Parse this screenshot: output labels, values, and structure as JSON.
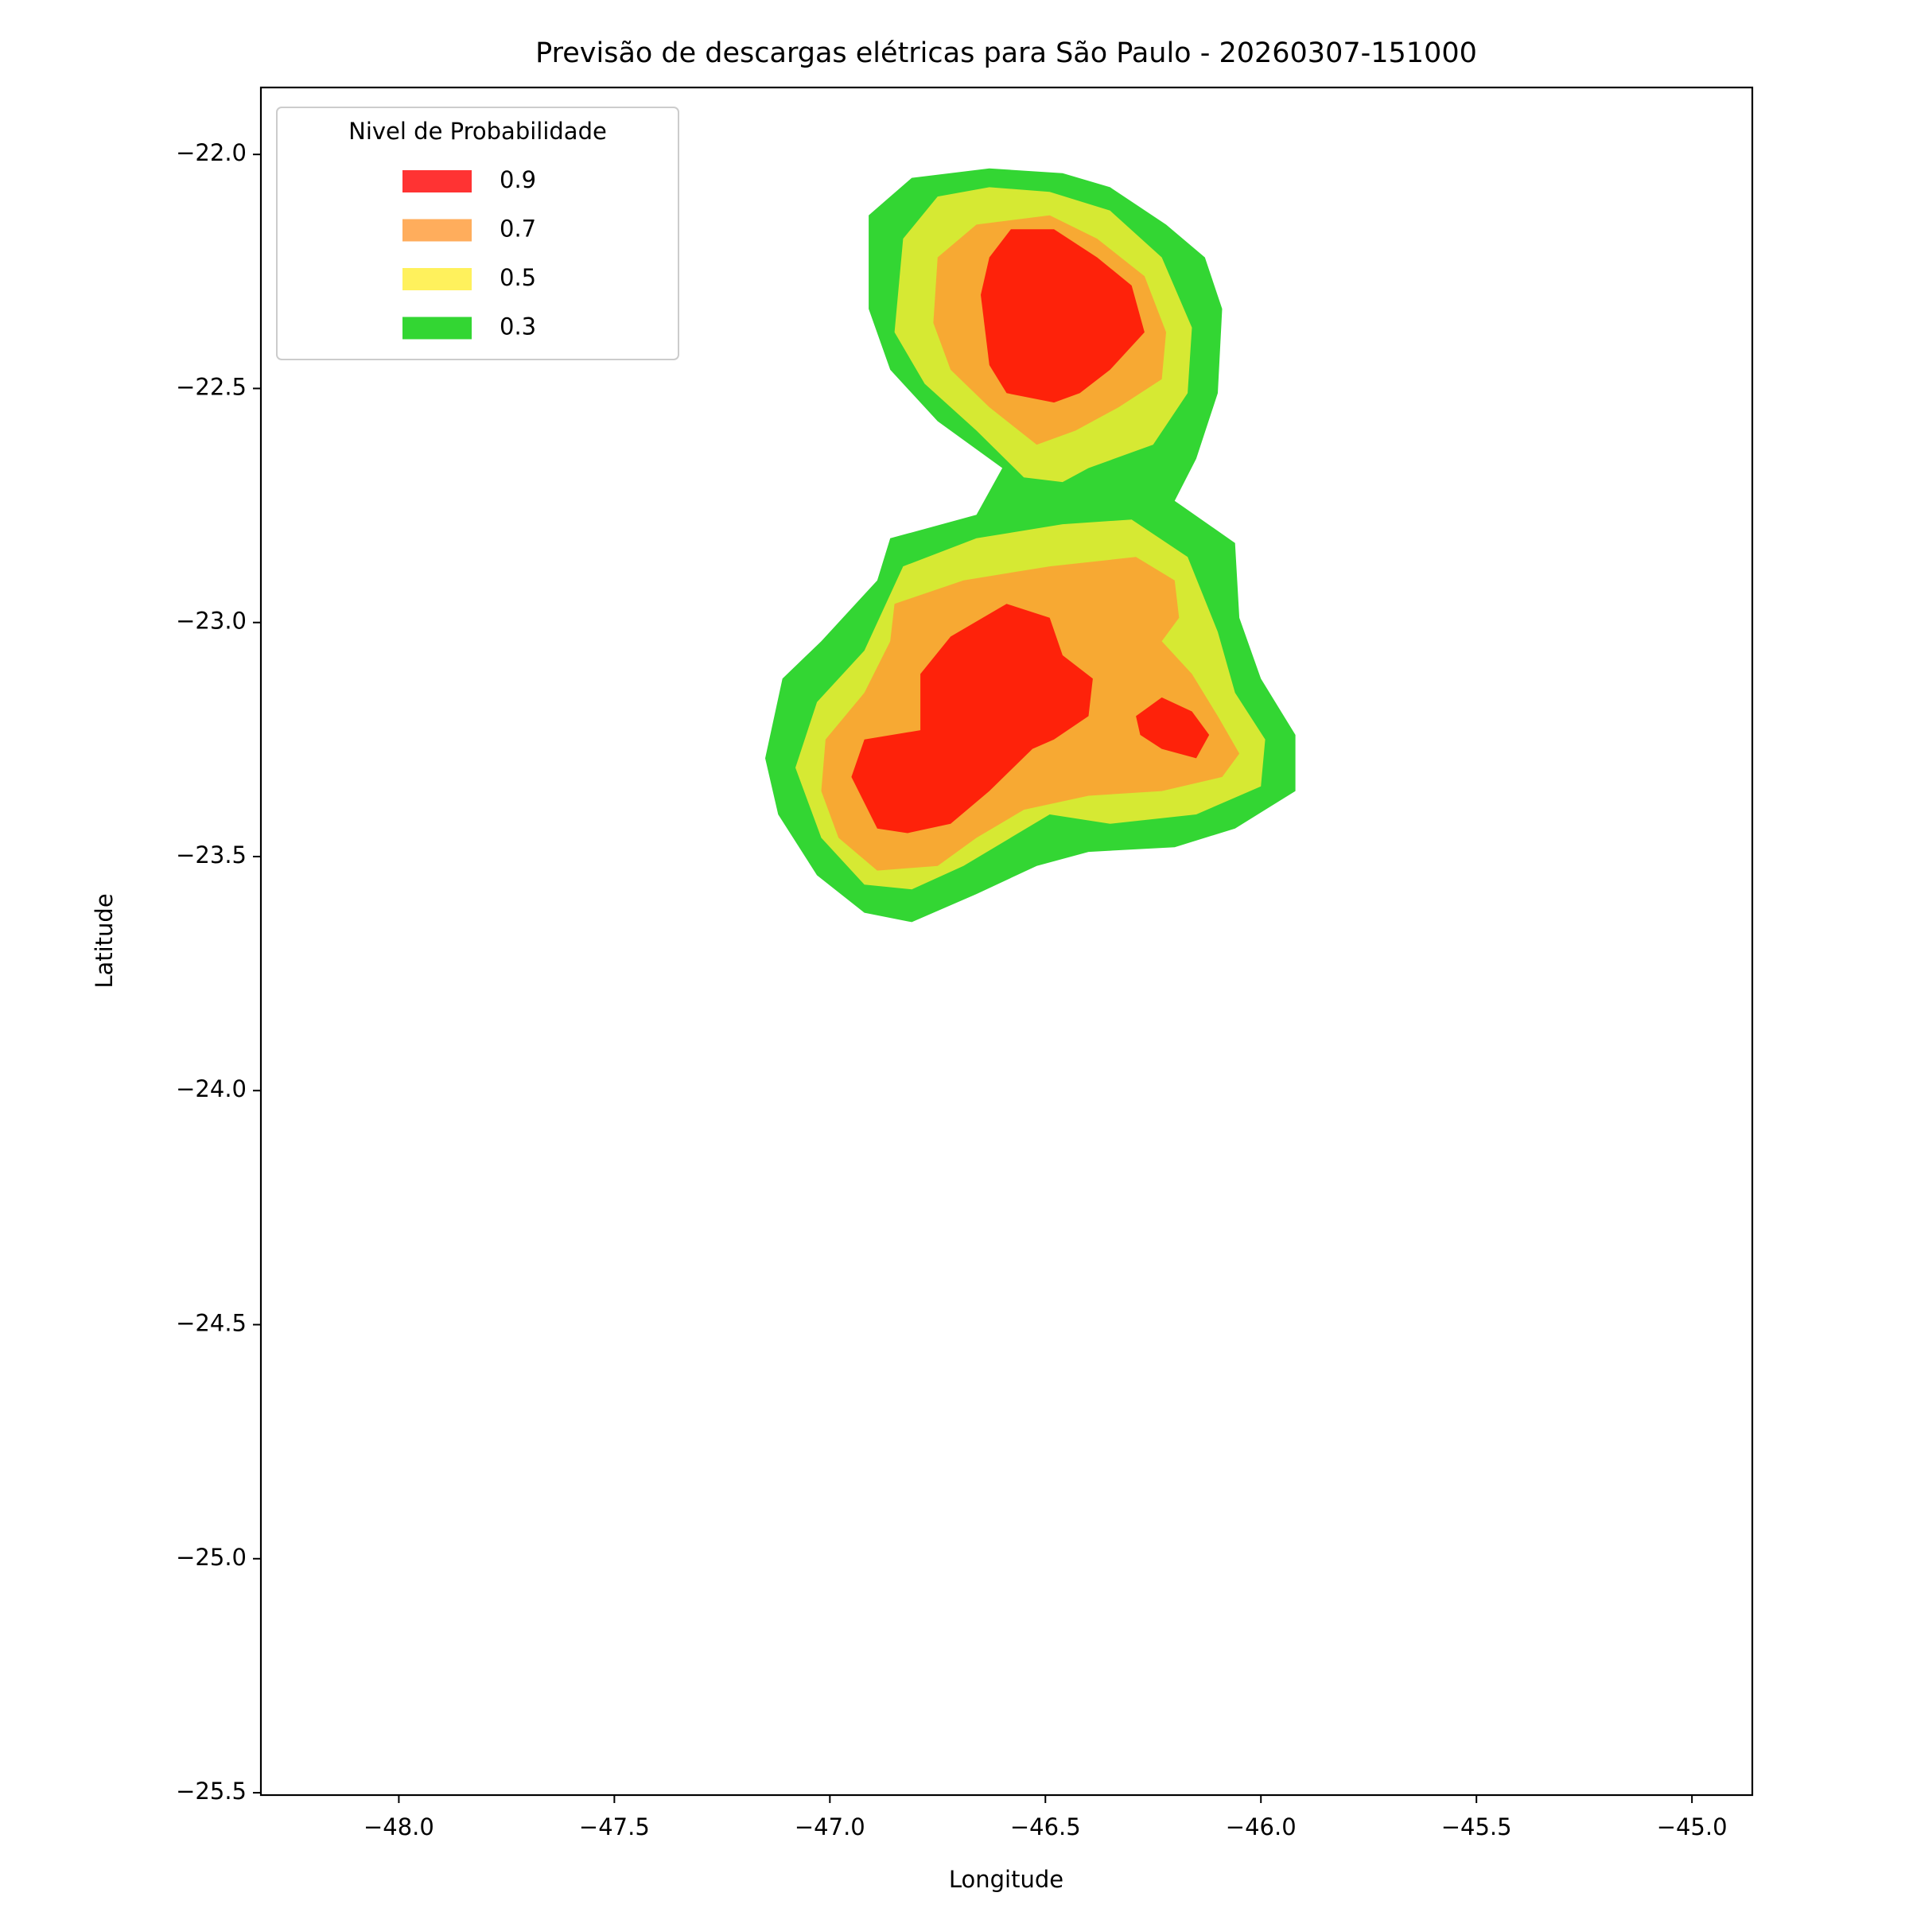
{
  "chart_data": {
    "type": "contour",
    "title": "Previsão de descargas elétricas para São Paulo - 20260307-151000",
    "x_label": "Longitude",
    "y_label": "Latitude",
    "xlim": [
      -48.32,
      -44.86
    ],
    "ylim": [
      -25.505,
      -21.857
    ],
    "xticks": [
      {
        "value": -48,
        "label": "−48.0"
      },
      {
        "value": -47.5,
        "label": "−47.5"
      },
      {
        "value": -47,
        "label": "−47.0"
      },
      {
        "value": -46.5,
        "label": "−46.5"
      },
      {
        "value": -46,
        "label": "−46.0"
      },
      {
        "value": -45.5,
        "label": "−45.5"
      },
      {
        "value": -45,
        "label": "−45.0"
      }
    ],
    "yticks": [
      {
        "value": -22,
        "label": "−22.0"
      },
      {
        "value": -22.5,
        "label": "−22.5"
      },
      {
        "value": -23,
        "label": "−23.0"
      },
      {
        "value": -23.5,
        "label": "−23.5"
      },
      {
        "value": -24,
        "label": "−24.0"
      },
      {
        "value": -24.5,
        "label": "−24.5"
      },
      {
        "value": -25,
        "label": "−25.0"
      },
      {
        "value": -25.5,
        "label": "−25.5"
      }
    ],
    "legend": {
      "title": "Nivel de Probabilidade",
      "loc": "upper left"
    },
    "alpha": 0.8,
    "series": [
      {
        "name": "0.9",
        "color": "#ff0000",
        "polygons": [
          {
            "lon": [
              -46.63,
              -46.58,
              -46.48,
              -46.38,
              -46.3,
              -46.27,
              -46.35,
              -46.42,
              -46.48,
              -46.59,
              -46.63,
              -46.65
            ],
            "lat": [
              -22.22,
              -22.16,
              -22.16,
              -22.22,
              -22.28,
              -22.38,
              -22.46,
              -22.51,
              -22.53,
              -22.51,
              -22.45,
              -22.3
            ]
          },
          {
            "lon": [
              -46.72,
              -46.59,
              -46.49,
              -46.46,
              -46.39,
              -46.4,
              -46.48,
              -46.53,
              -46.63,
              -46.72,
              -46.82,
              -46.89,
              -46.95,
              -46.92,
              -46.79,
              -46.79
            ],
            "lat": [
              -23.03,
              -22.96,
              -22.99,
              -23.07,
              -23.12,
              -23.2,
              -23.25,
              -23.27,
              -23.36,
              -23.43,
              -23.45,
              -23.44,
              -23.33,
              -23.25,
              -23.23,
              -23.11
            ]
          },
          {
            "lon": [
              -46.29,
              -46.23,
              -46.16,
              -46.12,
              -46.15,
              -46.23,
              -46.28
            ],
            "lat": [
              -23.2,
              -23.16,
              -23.19,
              -23.24,
              -23.29,
              -23.27,
              -23.24
            ]
          }
        ]
      },
      {
        "name": "0.7",
        "color": "#ff9933",
        "polygons": [
          {
            "lon": [
              -46.75,
              -46.66,
              -46.49,
              -46.38,
              -46.27,
              -46.22,
              -46.23,
              -46.33,
              -46.43,
              -46.52,
              -46.63,
              -46.72,
              -46.76
            ],
            "lat": [
              -22.22,
              -22.15,
              -22.13,
              -22.18,
              -22.26,
              -22.38,
              -22.48,
              -22.54,
              -22.59,
              -22.62,
              -22.54,
              -22.46,
              -22.36
            ]
          },
          {
            "lon": [
              -46.85,
              -46.69,
              -46.49,
              -46.29,
              -46.2,
              -46.19,
              -46.23,
              -46.16,
              -46.1,
              -46.05,
              -46.09,
              -46.23,
              -46.4,
              -46.55,
              -46.66,
              -46.75,
              -46.89,
              -46.98,
              -47.02,
              -47.01,
              -46.92,
              -46.86
            ],
            "lat": [
              -22.96,
              -22.91,
              -22.88,
              -22.86,
              -22.91,
              -22.99,
              -23.04,
              -23.11,
              -23.2,
              -23.28,
              -23.33,
              -23.36,
              -23.37,
              -23.4,
              -23.46,
              -23.52,
              -23.53,
              -23.46,
              -23.36,
              -23.25,
              -23.15,
              -23.04
            ]
          }
        ]
      },
      {
        "name": "0.5",
        "color": "#ffee33",
        "polygons": [
          {
            "lon": [
              -46.83,
              -46.75,
              -46.63,
              -46.49,
              -46.35,
              -46.23,
              -46.16,
              -46.17,
              -46.25,
              -46.4,
              -46.46,
              -46.55,
              -46.66,
              -46.78,
              -46.85
            ],
            "lat": [
              -22.18,
              -22.09,
              -22.07,
              -22.08,
              -22.12,
              -22.22,
              -22.37,
              -22.51,
              -22.62,
              -22.67,
              -22.7,
              -22.69,
              -22.59,
              -22.49,
              -22.38
            ]
          },
          {
            "lon": [
              -46.83,
              -46.66,
              -46.46,
              -46.3,
              -46.17,
              -46.1,
              -46.06,
              -45.99,
              -46.0,
              -46.15,
              -46.35,
              -46.49,
              -46.69,
              -46.81,
              -46.92,
              -47.02,
              -47.08,
              -47.03,
              -46.92
            ],
            "lat": [
              -22.88,
              -22.82,
              -22.79,
              -22.78,
              -22.86,
              -23.02,
              -23.15,
              -23.25,
              -23.35,
              -23.41,
              -23.43,
              -23.41,
              -23.52,
              -23.57,
              -23.56,
              -23.46,
              -23.31,
              -23.17,
              -23.06
            ]
          }
        ]
      },
      {
        "name": "0.3",
        "color": "#00cc00",
        "polygons": [
          {
            "lon": [
              -46.91,
              -46.81,
              -46.63,
              -46.46,
              -46.35,
              -46.22,
              -46.13,
              -46.09,
              -46.1,
              -46.15,
              -46.2,
              -46.06,
              -46.05,
              -46.0,
              -45.92,
              -45.92,
              -46.06,
              -46.2,
              -46.4,
              -46.52,
              -46.66,
              -46.81,
              -46.92,
              -47.03,
              -47.12,
              -47.15,
              -47.11,
              -47.02,
              -46.89,
              -46.86,
              -46.66,
              -46.6,
              -46.75,
              -46.86,
              -46.91
            ],
            "lat": [
              -22.13,
              -22.05,
              -22.03,
              -22.04,
              -22.07,
              -22.15,
              -22.22,
              -22.33,
              -22.51,
              -22.65,
              -22.74,
              -22.83,
              -22.99,
              -23.12,
              -23.24,
              -23.36,
              -23.44,
              -23.48,
              -23.49,
              -23.52,
              -23.58,
              -23.64,
              -23.62,
              -23.54,
              -23.41,
              -23.29,
              -23.12,
              -23.04,
              -22.91,
              -22.82,
              -22.77,
              -22.67,
              -22.57,
              -22.46,
              -22.33
            ]
          }
        ]
      }
    ]
  }
}
